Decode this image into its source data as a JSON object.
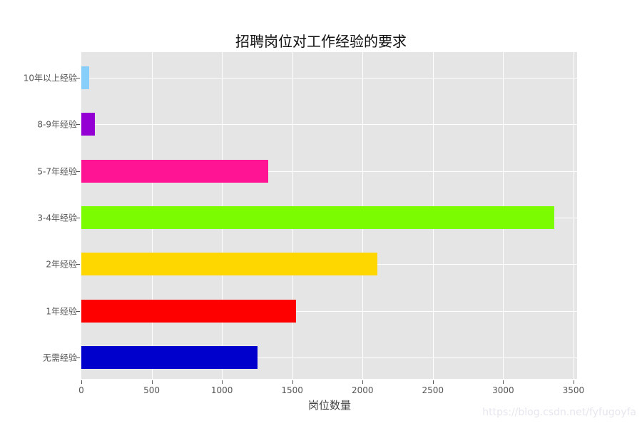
{
  "chart_data": {
    "type": "bar",
    "orientation": "horizontal",
    "title": "招聘岗位对工作经验的要求",
    "xlabel": "岗位数量",
    "ylabel": "",
    "xlim": [
      0,
      3530
    ],
    "xticks": [
      "0",
      "500",
      "1000",
      "1500",
      "2000",
      "2500",
      "3000",
      "3500"
    ],
    "grid": true,
    "legend": null,
    "categories": [
      "10年以上经验",
      "8-9年经验",
      "5-7年经验",
      "3-4年经验",
      "2年经验",
      "1年经验",
      "无需经验"
    ],
    "values": [
      55,
      95,
      1330,
      3365,
      2105,
      1525,
      1255
    ],
    "colors": [
      "#87cefa",
      "#9400d3",
      "#ff1493",
      "#7cfc00",
      "#ffd700",
      "#ff0000",
      "#0000cd"
    ]
  },
  "watermark": "https://blog.csdn.net/fyfugoyfa"
}
